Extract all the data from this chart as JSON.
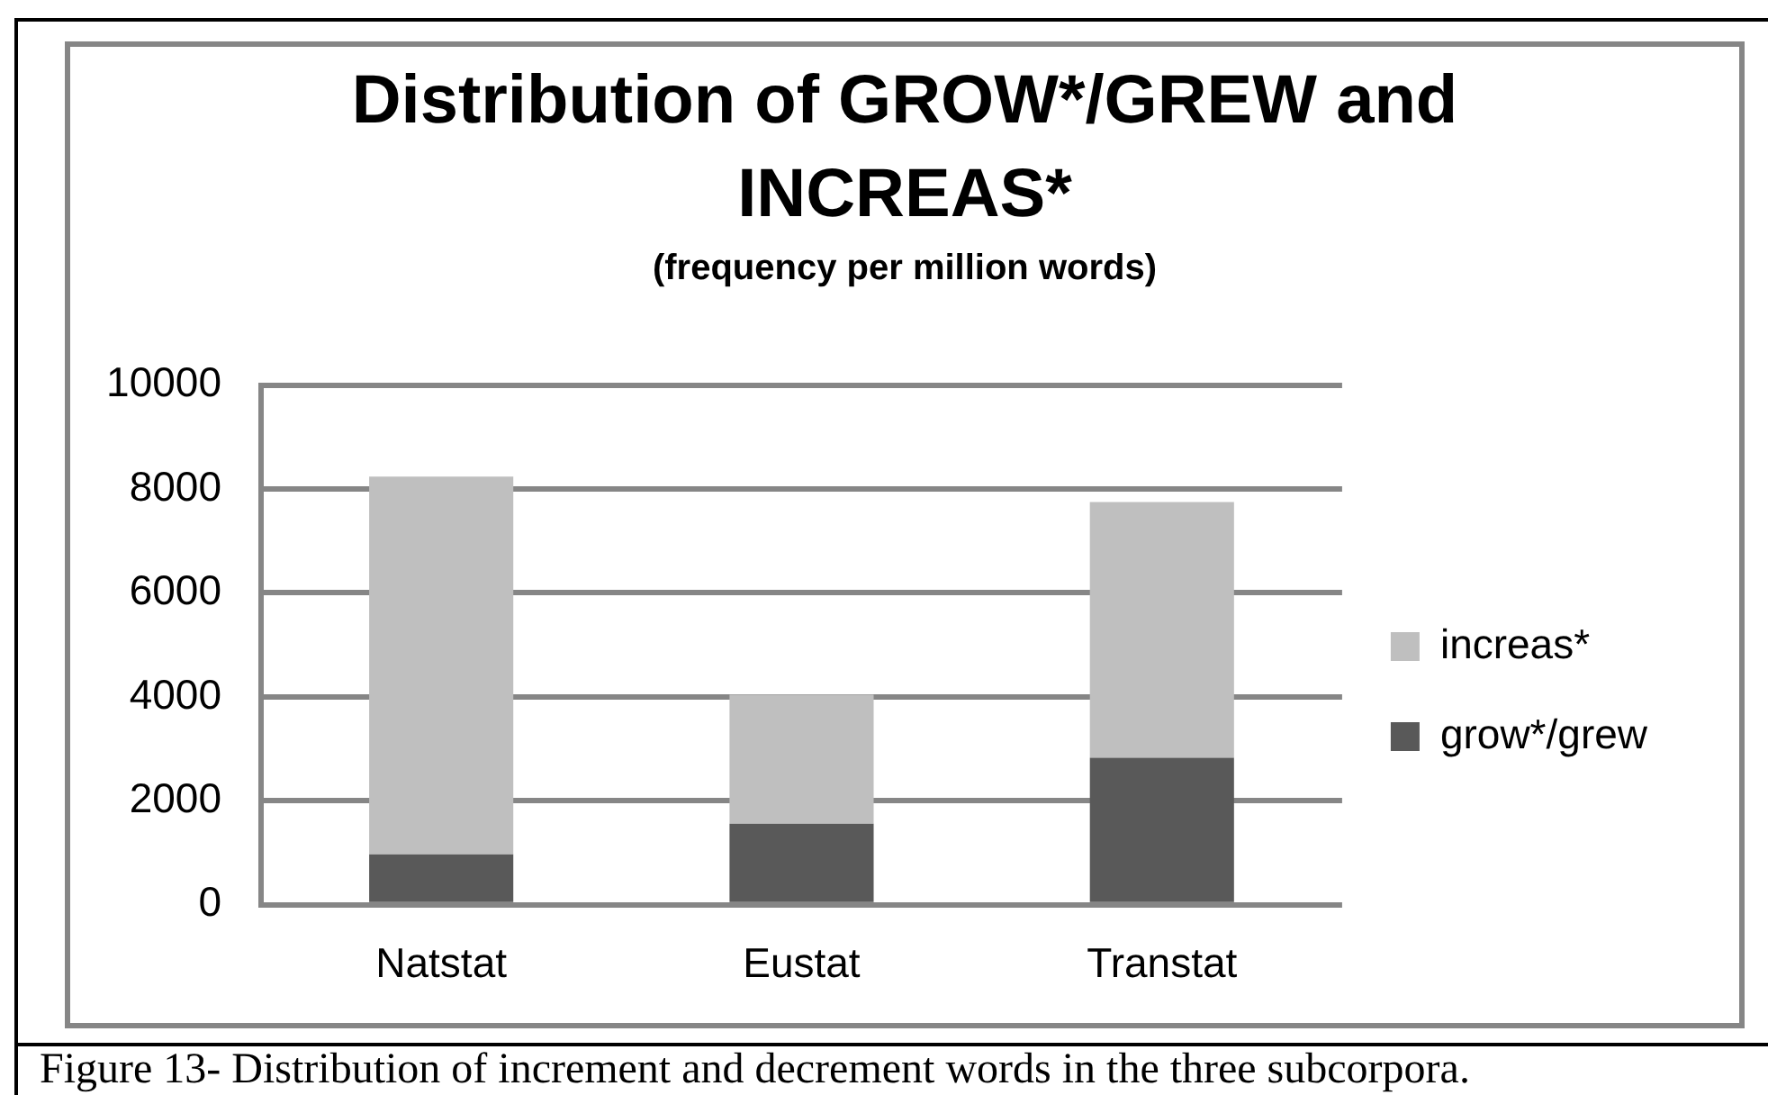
{
  "chart_data": {
    "type": "bar",
    "title": "Distribution of GROW*/GREW and INCREAS*",
    "subtitle": "(frequency per million words)",
    "categories": [
      "Natstat",
      "Eustat",
      "Transtat"
    ],
    "stacked": true,
    "series": [
      {
        "name": "grow*/grew",
        "color": "#595959",
        "values": [
          970,
          1560,
          2830
        ]
      },
      {
        "name": "increas*",
        "color": "#bfbfbf",
        "values": [
          7270,
          2480,
          4920
        ]
      }
    ],
    "ylim": [
      0,
      10000
    ],
    "yticks": [
      0,
      2000,
      4000,
      6000,
      8000,
      10000
    ],
    "grid": "y",
    "legend": "right",
    "annotations": [
      "Figure 13- Distribution of increment and decrement words in the three subcorpora."
    ]
  }
}
